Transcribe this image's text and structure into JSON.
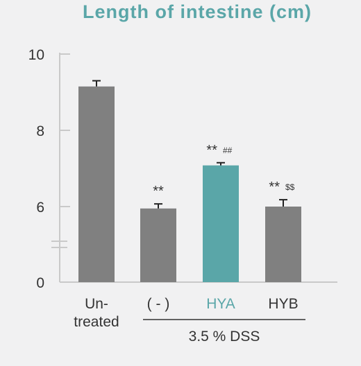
{
  "chart_data": {
    "type": "bar",
    "title": "Length of intestine (cm)",
    "yticks": [
      "10",
      "8",
      "6",
      "0"
    ],
    "axis_break": true,
    "categories": [
      {
        "lines": [
          "Un-",
          "treated"
        ],
        "value": 9.15,
        "error": 0.15,
        "color": "#808080",
        "sig_main": "",
        "sig_secondary": ""
      },
      {
        "lines": [
          "( - )"
        ],
        "value": 5.95,
        "error": 0.12,
        "color": "#808080",
        "sig_main": "**",
        "sig_secondary": ""
      },
      {
        "lines": [
          "HYA"
        ],
        "value": 7.08,
        "error": 0.07,
        "color": "#5aa6a8",
        "label_color": "#5aa6a8",
        "sig_main": "**",
        "sig_secondary": "##"
      },
      {
        "lines": [
          "HYB"
        ],
        "value": 6.0,
        "error": 0.18,
        "color": "#808080",
        "sig_main": "**",
        "sig_secondary": "$$"
      }
    ],
    "group_label": "3.5 % DSS",
    "group_categories": [
      1,
      2,
      3
    ]
  },
  "colors": {
    "accent": "#5aa6a8",
    "bar": "#808080",
    "axis": "#c9c9c9",
    "text": "#333333"
  }
}
